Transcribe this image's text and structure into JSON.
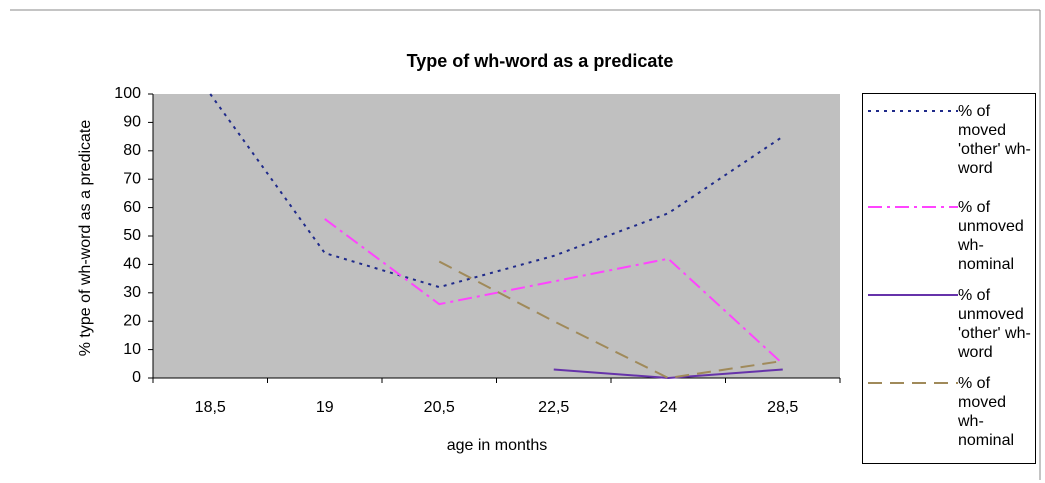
{
  "chart_data": {
    "type": "line",
    "title": "Type of wh-word as a predicate",
    "x_label": "age in months",
    "y_label": "% type of wh-word as a predicate",
    "categories": [
      "18,5",
      "19",
      "20,5",
      "22,5",
      "24",
      "28,5"
    ],
    "series": [
      {
        "name": "% of moved 'other' wh-word",
        "color": "#1f2a8a",
        "dash": "dotted",
        "values": [
          100,
          44,
          32,
          43,
          58,
          85
        ]
      },
      {
        "name": "% of unmoved wh-nominal",
        "color": "#ff44ff",
        "dash": "dash-dot",
        "values": [
          null,
          56,
          26,
          34,
          42,
          5
        ]
      },
      {
        "name": "% of unmoved 'other' wh-word",
        "color": "#6633aa",
        "dash": "solid",
        "values": [
          null,
          null,
          null,
          3,
          0,
          3
        ]
      },
      {
        "name": "% of moved wh-nominal",
        "color": "#a08a5a",
        "dash": "dashed",
        "values": [
          null,
          null,
          41,
          20,
          0,
          6
        ]
      }
    ],
    "ylim": [
      0,
      100
    ],
    "yticks": [
      0,
      10,
      20,
      30,
      40,
      50,
      60,
      70,
      80,
      90,
      100
    ],
    "plot_background": "#c0c0c0",
    "legend": "right"
  }
}
